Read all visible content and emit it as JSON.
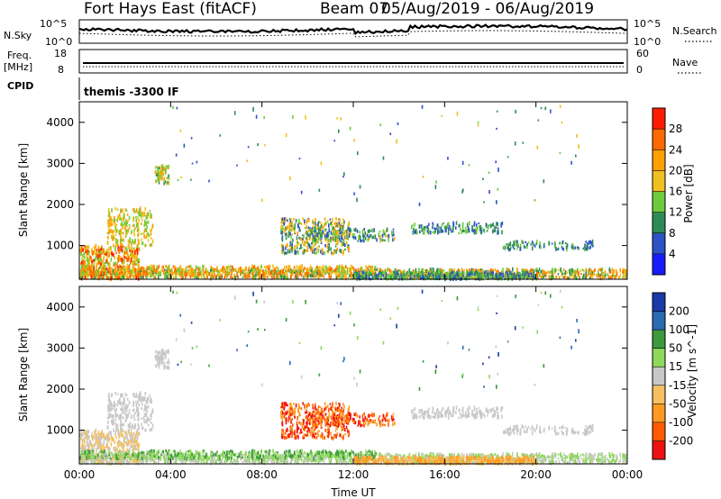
{
  "header": {
    "station": "Fort Hays East (fitACF)",
    "beam_label": "Beam 07",
    "date_range": "05/Aug/2019 - 06/Aug/2019"
  },
  "noise_panel": {
    "left_label": "N.Sky",
    "right_label": "N.Search",
    "left_ticks": [
      "10^5",
      "10^0"
    ],
    "right_ticks": [
      "10^5",
      "10^0"
    ]
  },
  "freq_panel": {
    "left_label_1": "Freq.",
    "left_label_2": "[MHz]",
    "left_ticks": [
      "18",
      "8"
    ],
    "right_label": "Nave",
    "right_ticks": [
      "60",
      "0"
    ],
    "cpid_label": "CPID",
    "cpid_value": "themis -3300 IF"
  },
  "colors": {
    "power": [
      "#1a1aff",
      "#2c52c8",
      "#2e8b57",
      "#6ecc3c",
      "#f0c020",
      "#ffa000",
      "#ff6a00",
      "#ff1c00"
    ],
    "velocity": [
      "#ee1111",
      "#ff5a00",
      "#ff9a20",
      "#f5c060",
      "#c8c8c8",
      "#8fd85c",
      "#3c9a3c",
      "#2a6ab0",
      "#1a3aa8"
    ],
    "gray": "#c8c8c8"
  },
  "chart_data": [
    {
      "type": "heatmap",
      "title": "",
      "xlabel": "Time UT",
      "ylabel": "Slant Range [km]",
      "colorbar_label": "Power [dB]",
      "colorbar_ticks": [
        "4",
        "8",
        "12",
        "16",
        "20",
        "24",
        "28"
      ],
      "x_ticks": [
        "00:00",
        "04:00",
        "08:00",
        "12:00",
        "16:00",
        "20:00",
        "00:00"
      ],
      "y_ticks": [
        "1000",
        "2000",
        "3000",
        "4000"
      ],
      "xlim": [
        0,
        24
      ],
      "ylim": [
        180,
        4500
      ],
      "clim": [
        0,
        32
      ]
    },
    {
      "type": "heatmap",
      "title": "",
      "xlabel": "Time UT",
      "ylabel": "Slant Range [km]",
      "colorbar_label": "Velocity [m s^-1]",
      "colorbar_ticks": [
        "-200",
        "-100",
        "-50",
        "-15",
        "15",
        "50",
        "100",
        "200"
      ],
      "x_ticks": [
        "00:00",
        "04:00",
        "08:00",
        "12:00",
        "16:00",
        "20:00",
        "00:00"
      ],
      "y_ticks": [
        "1000",
        "2000",
        "3000",
        "4000"
      ],
      "xlim": [
        0,
        24
      ],
      "ylim": [
        180,
        4500
      ]
    }
  ]
}
